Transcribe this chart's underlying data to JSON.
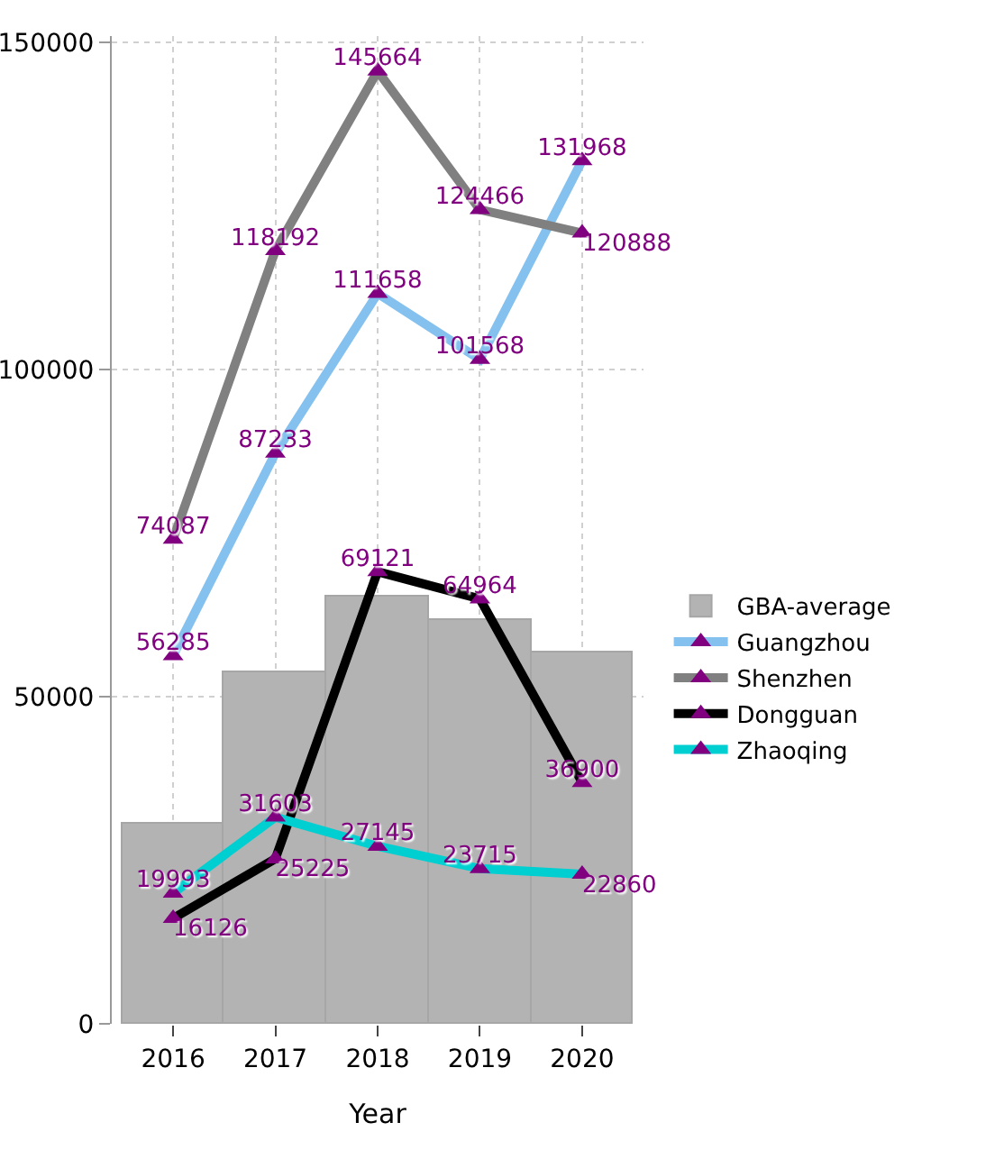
{
  "chart_data": {
    "type": "line",
    "xlabel": "Year",
    "categories": [
      "2016",
      "2017",
      "2018",
      "2019",
      "2020"
    ],
    "ylim": [
      0,
      151000
    ],
    "yticks": [
      0,
      50000,
      100000,
      150000
    ],
    "grid": true,
    "legend": "right",
    "marker": "triangle",
    "series": [
      {
        "name": "GBA-average",
        "type": "bar",
        "color": "#b3b3b3",
        "values": [
          30600,
          53600,
          65300,
          61700,
          56800
        ]
      },
      {
        "name": "Guangzhou",
        "color": "#85c1ef",
        "values": [
          56285,
          87233,
          111658,
          101568,
          131968
        ],
        "value_labels": [
          "56285",
          "87233",
          "111658",
          "101568",
          "131968"
        ]
      },
      {
        "name": "Shenzhen",
        "color": "#808080",
        "values": [
          74087,
          118192,
          145664,
          124466,
          120888
        ],
        "value_labels": [
          "74087",
          "118192",
          "145664",
          "124466",
          "120888"
        ]
      },
      {
        "name": "Dongguan",
        "color": "#000000",
        "values": [
          16126,
          25225,
          69121,
          64964,
          36900
        ],
        "value_labels": [
          "16126",
          "25225",
          "69121",
          "64964",
          "36900"
        ]
      },
      {
        "name": "Zhaoqing",
        "color": "#00cfd1",
        "values": [
          19993,
          31603,
          27145,
          23715,
          22860
        ],
        "value_labels": [
          "19993",
          "31603",
          "27145",
          "23715",
          "22860"
        ]
      }
    ]
  }
}
